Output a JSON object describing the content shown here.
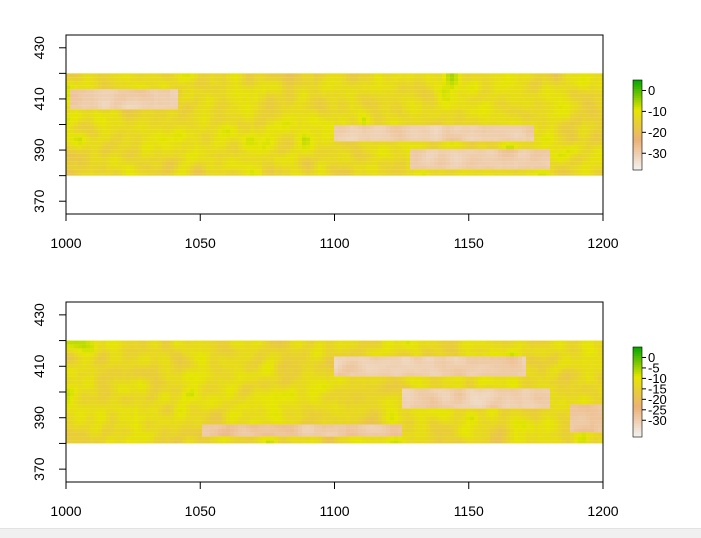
{
  "chart_data": [
    {
      "type": "heatmap",
      "title": "",
      "xlabel": "",
      "ylabel": "",
      "xlim": [
        1000,
        1200
      ],
      "ylim": [
        365,
        435
      ],
      "x_ticks": [
        1000,
        1050,
        1100,
        1150,
        1200
      ],
      "y_ticks": [
        370,
        390,
        410,
        430
      ],
      "y_minor_ticks": [
        380,
        400,
        420
      ],
      "raster_extent": {
        "x": [
          1000,
          1200
        ],
        "y": [
          380,
          420
        ]
      },
      "value_range": [
        -38,
        5
      ],
      "colorbar": {
        "ticks": [
          0,
          -10,
          -20,
          -30
        ],
        "labels": [
          "0",
          "-10",
          "-20",
          "-30"
        ],
        "colors": [
          "#00a600",
          "#e6e600",
          "#ecb176",
          "#f2f2f2"
        ]
      },
      "low_value_patches": [
        {
          "x": [
            1002,
            1042
          ],
          "y": [
            406,
            414
          ],
          "value": -30
        },
        {
          "x": [
            1100,
            1175
          ],
          "y": [
            393,
            399
          ],
          "value": -30
        },
        {
          "x": [
            1128,
            1180
          ],
          "y": [
            382,
            390
          ],
          "value": -30
        }
      ]
    },
    {
      "type": "heatmap",
      "title": "",
      "xlabel": "",
      "ylabel": "",
      "xlim": [
        1000,
        1200
      ],
      "ylim": [
        365,
        435
      ],
      "x_ticks": [
        1000,
        1050,
        1100,
        1150,
        1200
      ],
      "y_ticks": [
        370,
        390,
        410,
        430
      ],
      "y_minor_ticks": [
        380,
        400,
        420
      ],
      "raster_extent": {
        "x": [
          1000,
          1200
        ],
        "y": [
          380,
          420
        ]
      },
      "value_range": [
        -38,
        5
      ],
      "colorbar": {
        "ticks": [
          0,
          -5,
          -10,
          -15,
          -20,
          -25,
          -30
        ],
        "labels": [
          "0",
          "-5",
          "-10",
          "-15",
          "-20",
          "-25",
          "-30"
        ],
        "colors": [
          "#00a600",
          "#e6e600",
          "#ecb176",
          "#f2f2f2"
        ]
      },
      "low_value_patches": [
        {
          "x": [
            1100,
            1172
          ],
          "y": [
            406,
            413
          ],
          "value": -30
        },
        {
          "x": [
            1125,
            1180
          ],
          "y": [
            394,
            402
          ],
          "value": -30
        },
        {
          "x": [
            1050,
            1125
          ],
          "y": [
            382,
            387
          ],
          "value": -28
        },
        {
          "x": [
            1188,
            1200
          ],
          "y": [
            385,
            395
          ],
          "value": -28
        }
      ]
    }
  ]
}
